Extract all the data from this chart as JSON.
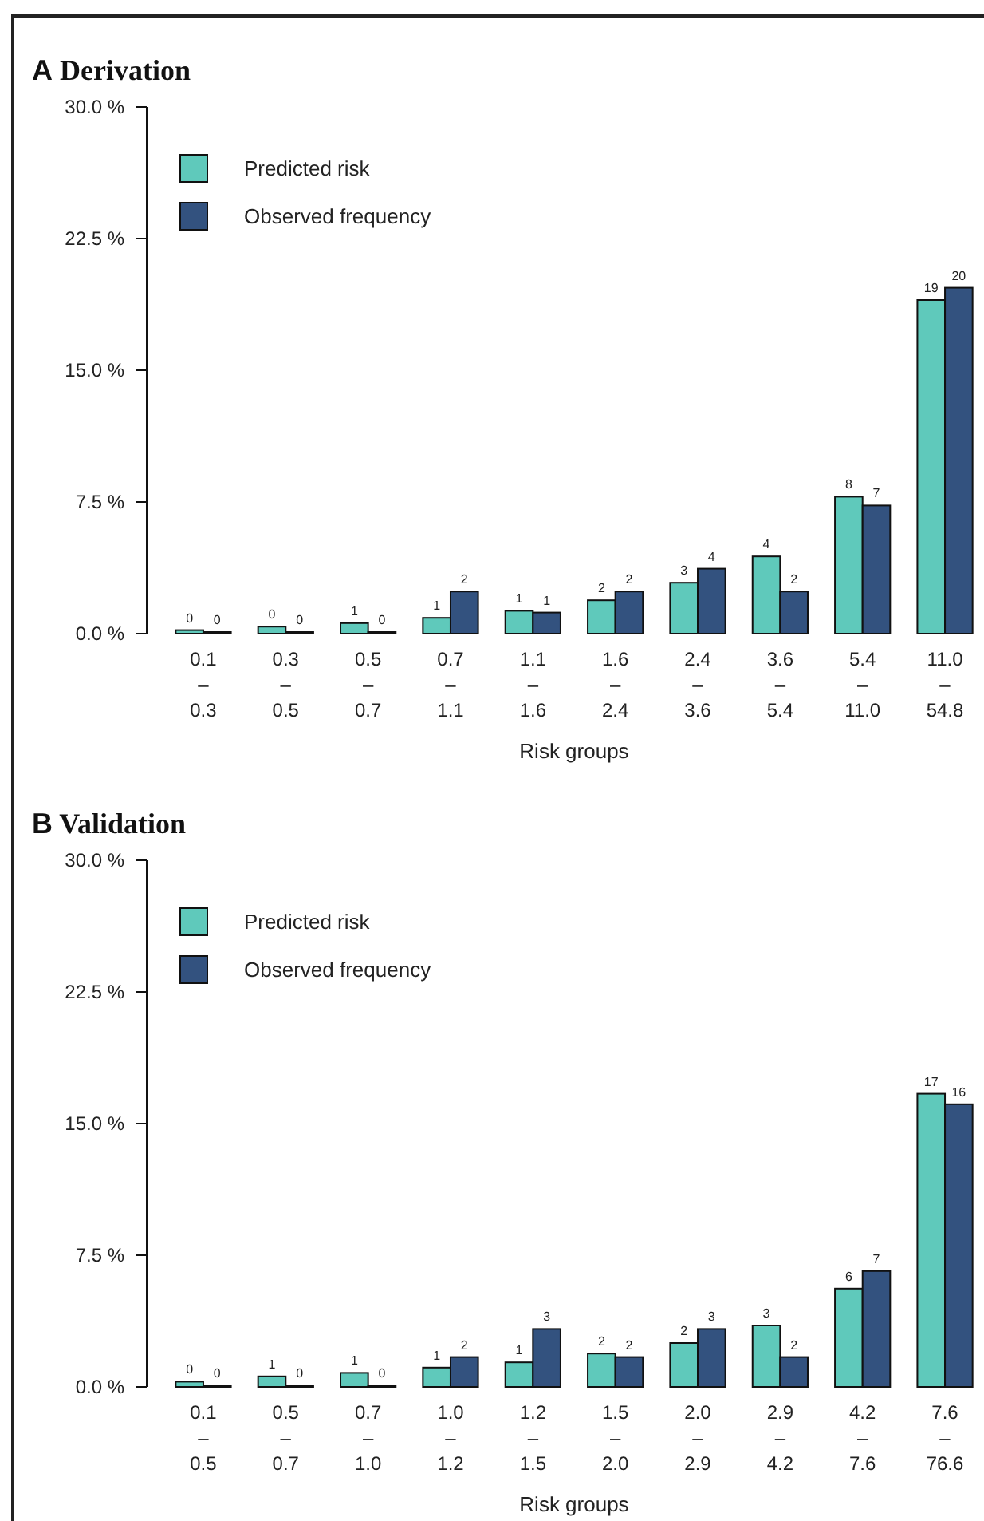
{
  "chart_data": [
    {
      "type": "bar",
      "title": "A Derivation",
      "xlabel": "Risk groups",
      "categories": [
        "0.1\n–\n0.3",
        "0.3\n–\n0.5",
        "0.5\n–\n0.7",
        "0.7\n–\n1.1",
        "1.1\n–\n1.6",
        "1.6\n–\n2.4",
        "2.4\n–\n3.6",
        "3.6\n–\n5.4",
        "5.4\n–\n11.0",
        "11.0\n–\n54.8"
      ],
      "series": [
        {
          "name": "Predicted risk",
          "color": "#5fc9bb",
          "values": [
            0.2,
            0.4,
            0.6,
            0.9,
            1.3,
            1.9,
            2.9,
            4.4,
            7.8,
            19.0
          ],
          "value_labels": [
            "0",
            "0",
            "1",
            "1",
            "1",
            "2",
            "3",
            "4",
            "8",
            "19"
          ]
        },
        {
          "name": "Observed frequency",
          "color": "#33527f",
          "values": [
            0,
            0,
            0,
            2.4,
            1.2,
            2.4,
            3.7,
            2.4,
            7.3,
            19.7
          ],
          "value_labels": [
            "0",
            "0",
            "0",
            "2",
            "1",
            "2",
            "4",
            "2",
            "7",
            "20"
          ]
        }
      ],
      "ylim": [
        0,
        30
      ],
      "yticks": [
        {
          "value": 0,
          "label": "0.0 %"
        },
        {
          "value": 7.5,
          "label": "7.5 %"
        },
        {
          "value": 15,
          "label": "15.0 %"
        },
        {
          "value": 22.5,
          "label": "22.5 %"
        },
        {
          "value": 30,
          "label": "30.0 %"
        }
      ],
      "legend": "top left",
      "grid": false
    },
    {
      "type": "bar",
      "title": "B Validation",
      "xlabel": "Risk groups",
      "categories": [
        "0.1\n–\n0.5",
        "0.5\n–\n0.7",
        "0.7\n–\n1.0",
        "1.0\n–\n1.2",
        "1.2\n–\n1.5",
        "1.5\n–\n2.0",
        "2.0\n–\n2.9",
        "2.9\n–\n4.2",
        "4.2\n–\n7.6",
        "7.6\n–\n76.6"
      ],
      "series": [
        {
          "name": "Predicted risk",
          "color": "#5fc9bb",
          "values": [
            0.3,
            0.6,
            0.8,
            1.1,
            1.4,
            1.9,
            2.5,
            3.5,
            5.6,
            16.7
          ],
          "value_labels": [
            "0",
            "1",
            "1",
            "1",
            "1",
            "2",
            "2",
            "3",
            "6",
            "17"
          ]
        },
        {
          "name": "Observed frequency",
          "color": "#33527f",
          "values": [
            0,
            0,
            0,
            1.7,
            3.3,
            1.7,
            3.3,
            1.7,
            6.6,
            16.1
          ],
          "value_labels": [
            "0",
            "0",
            "0",
            "2",
            "3",
            "2",
            "3",
            "2",
            "7",
            "16"
          ]
        }
      ],
      "ylim": [
        0,
        30
      ],
      "yticks": [
        {
          "value": 0,
          "label": "0.0 %"
        },
        {
          "value": 7.5,
          "label": "7.5 %"
        },
        {
          "value": 15,
          "label": "15.0 %"
        },
        {
          "value": 22.5,
          "label": "22.5 %"
        },
        {
          "value": 30,
          "label": "30.0 %"
        }
      ],
      "legend": "top left",
      "grid": false
    }
  ]
}
